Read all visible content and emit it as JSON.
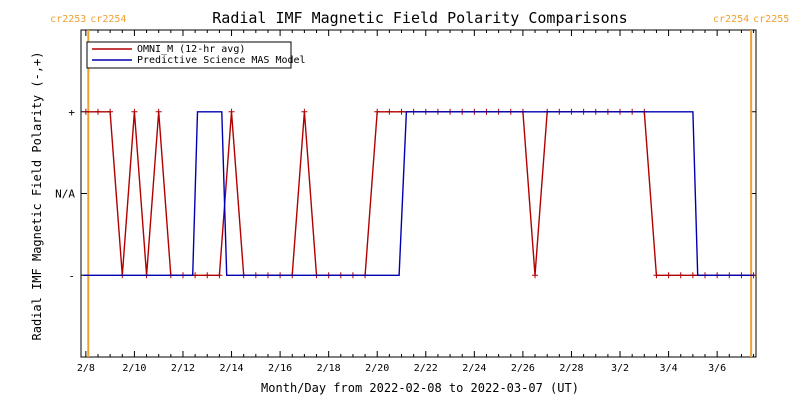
{
  "chart_data": {
    "type": "line",
    "title": "Radial IMF Magnetic Field Polarity Comparisons",
    "xlabel": "Month/Day from 2022-02-08 to 2022-03-07 (UT)",
    "ylabel": "Radial IMF Magnetic Field Polarity (-,+)",
    "x_axis": {
      "unit": "days from 2022-02-08",
      "xlim": [
        -0.2,
        27.6
      ],
      "ticks": [
        {
          "x": 0,
          "label": "2/8"
        },
        {
          "x": 2,
          "label": "2/10"
        },
        {
          "x": 4,
          "label": "2/12"
        },
        {
          "x": 6,
          "label": "2/14"
        },
        {
          "x": 8,
          "label": "2/16"
        },
        {
          "x": 10,
          "label": "2/18"
        },
        {
          "x": 12,
          "label": "2/20"
        },
        {
          "x": 14,
          "label": "2/22"
        },
        {
          "x": 16,
          "label": "2/24"
        },
        {
          "x": 18,
          "label": "2/26"
        },
        {
          "x": 20,
          "label": "2/28"
        },
        {
          "x": 22,
          "label": "3/2"
        },
        {
          "x": 24,
          "label": "3/4"
        },
        {
          "x": 26,
          "label": "3/6"
        }
      ]
    },
    "y_axis": {
      "ylim": [
        -2,
        2
      ],
      "ticks": [
        {
          "y": 1,
          "label": "+"
        },
        {
          "y": 0,
          "label": "N/A"
        },
        {
          "y": -1,
          "label": "-"
        }
      ]
    },
    "carrington_markers": [
      {
        "x": 0.1,
        "label_left": "cr2253",
        "label_right": "cr2254",
        "color": "#f0a030"
      },
      {
        "x": 27.4,
        "label_left": "cr2254",
        "label_right": "cr2255",
        "color": "#f0a030"
      }
    ],
    "legend": {
      "position": "top-left"
    },
    "series": [
      {
        "name": "OMNI_M (12-hr avg)",
        "color": "#b00000",
        "markers": true,
        "x": [
          0.0,
          0.5,
          1.0,
          1.5,
          2.0,
          2.5,
          3.0,
          3.5,
          4.0,
          4.5,
          5.0,
          5.5,
          6.0,
          6.5,
          7.0,
          7.5,
          8.0,
          8.5,
          9.0,
          9.5,
          10.0,
          10.5,
          11.0,
          11.5,
          12.0,
          12.5,
          13.0,
          13.5,
          14.0,
          14.5,
          15.0,
          15.5,
          16.0,
          16.5,
          17.0,
          17.5,
          18.0,
          18.5,
          19.0,
          19.5,
          20.0,
          20.5,
          21.0,
          21.5,
          22.0,
          22.5,
          23.0,
          23.5,
          24.0,
          24.5,
          25.0,
          25.5,
          26.0,
          26.5,
          27.0,
          27.5
        ],
        "y": [
          1,
          1,
          1,
          -1,
          1,
          -1,
          1,
          -1,
          -1,
          -1,
          -1,
          -1,
          1,
          -1,
          -1,
          -1,
          -1,
          -1,
          1,
          -1,
          -1,
          -1,
          -1,
          -1,
          1,
          1,
          1,
          1,
          1,
          1,
          1,
          1,
          1,
          1,
          1,
          1,
          1,
          -1,
          1,
          1,
          1,
          1,
          1,
          1,
          1,
          1,
          1,
          -1,
          -1,
          -1,
          -1,
          -1,
          -1,
          -1,
          -1,
          -1
        ]
      },
      {
        "name": "Predictive Science MAS Model",
        "color": "#0000b0",
        "markers": false,
        "x": [
          -0.1,
          4.4,
          4.6,
          5.6,
          5.8,
          12.9,
          13.2,
          25.0,
          25.2,
          27.5
        ],
        "y": [
          -1,
          -1,
          1,
          1,
          -1,
          -1,
          1,
          1,
          -1,
          -1
        ]
      }
    ]
  }
}
